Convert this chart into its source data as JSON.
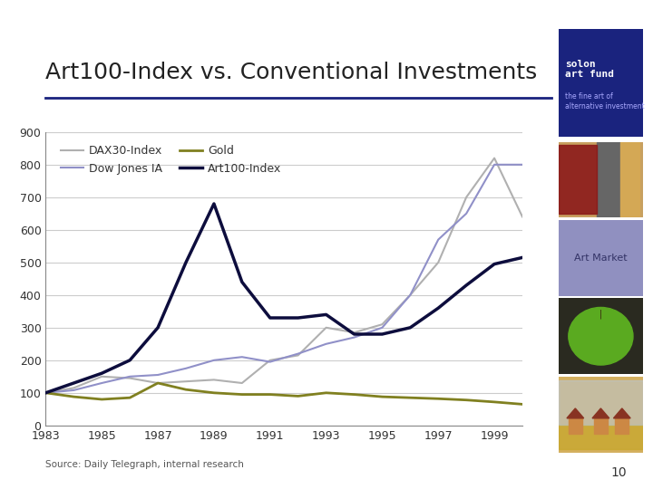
{
  "title": "Art100-Index vs. Conventional Investments",
  "source_text": "Source: Daily Telegraph, internal research",
  "page_number": "10",
  "background_color": "#ffffff",
  "chart_bg": "#ffffff",
  "sidebar_bg": "#ffffff",
  "solon_box_color": "#1a237e",
  "art_market_box_color": "#9090c0",
  "years": [
    1983,
    1984,
    1985,
    1986,
    1987,
    1988,
    1989,
    1990,
    1991,
    1992,
    1993,
    1994,
    1995,
    1996,
    1997,
    1998,
    1999,
    2000
  ],
  "dax30": [
    100,
    115,
    150,
    145,
    130,
    135,
    140,
    130,
    200,
    215,
    300,
    285,
    310,
    400,
    500,
    700,
    820,
    640
  ],
  "dow_jones": [
    100,
    108,
    130,
    150,
    155,
    175,
    200,
    210,
    195,
    220,
    250,
    270,
    300,
    400,
    570,
    650,
    800,
    800
  ],
  "gold": [
    100,
    88,
    80,
    85,
    130,
    110,
    100,
    95,
    95,
    90,
    100,
    95,
    88,
    85,
    82,
    78,
    72,
    65
  ],
  "art100": [
    100,
    130,
    160,
    200,
    300,
    500,
    680,
    440,
    330,
    330,
    340,
    280,
    280,
    300,
    360,
    430,
    495,
    515
  ],
  "dax30_color": "#b0b0b0",
  "dow_jones_color": "#9090c8",
  "gold_color": "#808020",
  "art100_color": "#0d0d3d",
  "dax30_lw": 1.5,
  "dow_jones_lw": 1.5,
  "gold_lw": 2.0,
  "art100_lw": 2.5,
  "ylim": [
    0,
    900
  ],
  "yticks": [
    0,
    100,
    200,
    300,
    400,
    500,
    600,
    700,
    800,
    900
  ],
  "xlim_start": 1983,
  "xlim_end": 2000,
  "xticks": [
    1983,
    1985,
    1987,
    1989,
    1991,
    1993,
    1995,
    1997,
    1999
  ],
  "title_fontsize": 18,
  "tick_fontsize": 9,
  "legend_fontsize": 9,
  "source_fontsize": 7.5,
  "title_color": "#222222",
  "axis_line_color": "#888888",
  "grid_color": "#cccccc"
}
